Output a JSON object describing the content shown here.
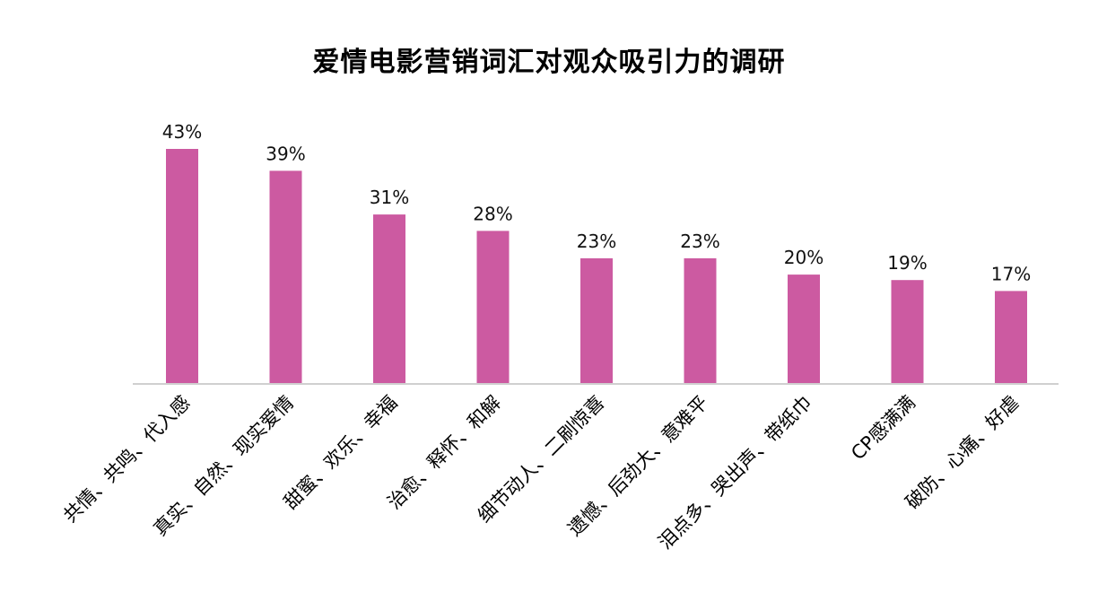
{
  "chart_data": {
    "type": "bar",
    "title": "爱情电影营销词汇对观众吸引力的调研",
    "categories": [
      "共情、共鸣、代入感",
      "真实、自然、现实爱情",
      "甜蜜、欢乐、幸福",
      "治愈、释怀、和解",
      "细节动人、二刷惊喜",
      "遗憾、后劲大、意难平",
      "泪点多、哭出声、带纸巾",
      "CP感满满",
      "破防、心痛、好虐"
    ],
    "values": [
      43,
      39,
      31,
      28,
      23,
      23,
      20,
      19,
      17
    ],
    "value_labels": [
      "43%",
      "39%",
      "31%",
      "28%",
      "23%",
      "23%",
      "20%",
      "19%",
      "17%"
    ],
    "unit": "%",
    "ylim": [
      0,
      45
    ],
    "grid": false,
    "legend": "none",
    "bar_color": "#cc5aa1",
    "axis_color": "#d0d0d0"
  }
}
